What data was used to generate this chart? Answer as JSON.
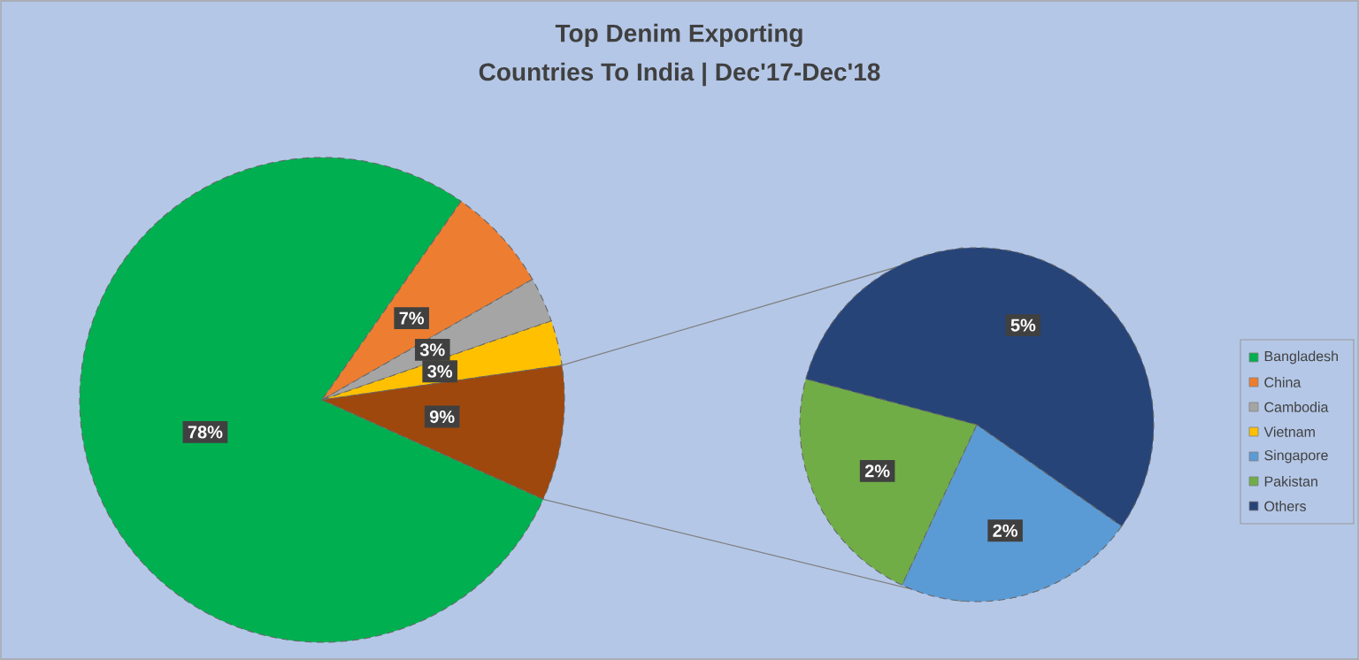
{
  "chart_data": [
    {
      "type": "pie",
      "title": "Top Denim Exporting",
      "subtitle": "Countries To India | Dec'17-Dec'18",
      "categories": [
        "Bangladesh",
        "China",
        "Cambodia",
        "Vietnam",
        null
      ],
      "values": [
        78,
        7,
        3,
        3,
        9
      ],
      "value_labels": [
        "78%",
        "7%",
        "3%",
        "3%",
        "9%"
      ],
      "colors": [
        "#00b050",
        "#ed7d31",
        "#a5a5a5",
        "#ffc000",
        "#9e480e"
      ],
      "legend": "right"
    },
    {
      "type": "pie",
      "categories": [
        "Singapore",
        "Pakistan",
        "Others"
      ],
      "values": [
        2,
        2,
        5
      ],
      "value_labels": [
        "2%",
        "2%",
        "5%"
      ],
      "colors": [
        "#5b9bd5",
        "#70ad47",
        "#264478"
      ],
      "legend": "right"
    }
  ]
}
